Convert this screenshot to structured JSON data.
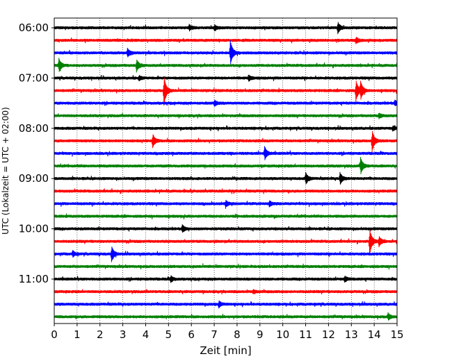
{
  "chart_data": {
    "type": "line",
    "xlabel": "Zeit  [min]",
    "ylabel": "UTC (Lokalzeit = UTC + 02:00)",
    "xlim": [
      0,
      15
    ],
    "xticks": [
      0,
      1,
      2,
      3,
      4,
      5,
      6,
      7,
      8,
      9,
      10,
      11,
      12,
      13,
      14,
      15
    ],
    "ytick_labels": [
      "06:00",
      "07:00",
      "08:00",
      "09:00",
      "10:00",
      "11:00"
    ],
    "grid": "vertical-dotted",
    "series_colors": [
      "#000000",
      "#ff0000",
      "#0000ff",
      "#008000"
    ],
    "traces_per_hour": 4,
    "trace_count": 24,
    "events": [
      {
        "trace": 0,
        "x": 12.4,
        "amp": 1.0
      },
      {
        "trace": 0,
        "x": 5.9,
        "amp": 0.5
      },
      {
        "trace": 0,
        "x": 7.0,
        "amp": 0.45
      },
      {
        "trace": 1,
        "x": 13.2,
        "amp": 0.5
      },
      {
        "trace": 2,
        "x": 7.7,
        "amp": 2.2
      },
      {
        "trace": 2,
        "x": 3.2,
        "amp": 0.7
      },
      {
        "trace": 3,
        "x": 0.2,
        "amp": 1.2
      },
      {
        "trace": 3,
        "x": 3.6,
        "amp": 1.0
      },
      {
        "trace": 4,
        "x": 8.5,
        "amp": 0.5
      },
      {
        "trace": 4,
        "x": 3.7,
        "amp": 0.4
      },
      {
        "trace": 5,
        "x": 4.8,
        "amp": 2.5
      },
      {
        "trace": 5,
        "x": 13.2,
        "amp": 1.8
      },
      {
        "trace": 5,
        "x": 13.4,
        "amp": 1.5
      },
      {
        "trace": 6,
        "x": 7.0,
        "amp": 0.5
      },
      {
        "trace": 6,
        "x": 14.9,
        "amp": 0.4
      },
      {
        "trace": 7,
        "x": 14.2,
        "amp": 0.4
      },
      {
        "trace": 8,
        "x": 14.8,
        "amp": 0.4
      },
      {
        "trace": 9,
        "x": 4.3,
        "amp": 1.2
      },
      {
        "trace": 9,
        "x": 13.9,
        "amp": 2.0
      },
      {
        "trace": 10,
        "x": 9.2,
        "amp": 1.2
      },
      {
        "trace": 11,
        "x": 13.4,
        "amp": 1.5
      },
      {
        "trace": 12,
        "x": 11.0,
        "amp": 1.0
      },
      {
        "trace": 12,
        "x": 12.5,
        "amp": 1.0
      },
      {
        "trace": 14,
        "x": 7.5,
        "amp": 0.5
      },
      {
        "trace": 14,
        "x": 9.4,
        "amp": 0.5
      },
      {
        "trace": 16,
        "x": 5.6,
        "amp": 0.6
      },
      {
        "trace": 17,
        "x": 13.8,
        "amp": 2.2
      },
      {
        "trace": 17,
        "x": 14.2,
        "amp": 0.9
      },
      {
        "trace": 18,
        "x": 2.5,
        "amp": 1.4
      },
      {
        "trace": 18,
        "x": 0.8,
        "amp": 0.5
      },
      {
        "trace": 20,
        "x": 5.1,
        "amp": 0.5
      },
      {
        "trace": 20,
        "x": 12.7,
        "amp": 0.5
      },
      {
        "trace": 21,
        "x": 8.7,
        "amp": 0.3
      },
      {
        "trace": 22,
        "x": 7.2,
        "amp": 0.5
      },
      {
        "trace": 23,
        "x": 14.6,
        "amp": 0.6
      }
    ]
  }
}
